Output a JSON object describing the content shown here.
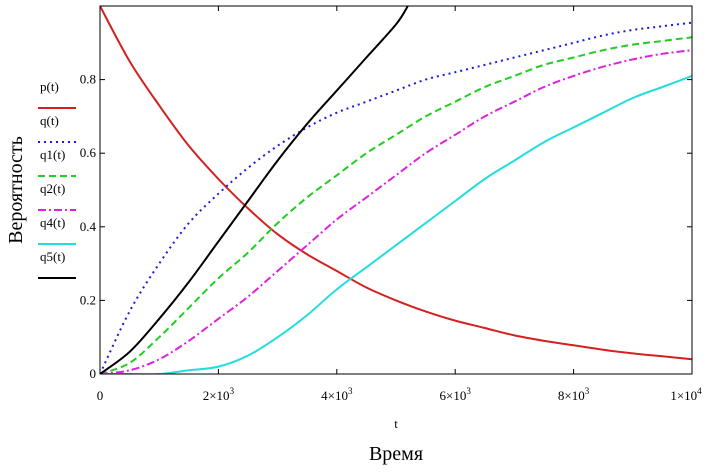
{
  "chart_data": {
    "type": "line",
    "xlabel_var": "t",
    "xlabel": "Время",
    "ylabel": "Вероятность",
    "xlim": [
      0,
      10000
    ],
    "ylim": [
      0,
      1
    ],
    "x_ticks": [
      {
        "value": 0,
        "base": "0",
        "exp": ""
      },
      {
        "value": 2000,
        "base": "2×10",
        "exp": "3"
      },
      {
        "value": 4000,
        "base": "4×10",
        "exp": "3"
      },
      {
        "value": 6000,
        "base": "6×10",
        "exp": "3"
      },
      {
        "value": 8000,
        "base": "8×10",
        "exp": "3"
      },
      {
        "value": 10000,
        "base": "1×10",
        "exp": "4"
      }
    ],
    "y_ticks": [
      {
        "value": 0,
        "label": "0"
      },
      {
        "value": 0.2,
        "label": "0.2"
      },
      {
        "value": 0.4,
        "label": "0.4"
      },
      {
        "value": 0.6,
        "label": "0.6"
      },
      {
        "value": 0.8,
        "label": "0.8"
      }
    ],
    "grid": false,
    "legend_position": "left",
    "x": [
      0,
      500,
      1000,
      1500,
      2000,
      2500,
      3000,
      3500,
      4000,
      4500,
      5000,
      5500,
      6000,
      6500,
      7000,
      7500,
      8000,
      8500,
      9000,
      9500,
      10000
    ],
    "series": [
      {
        "name": "p(t)",
        "color": "#d42020",
        "dash": "solid",
        "values": [
          1.0,
          0.85,
          0.73,
          0.62,
          0.53,
          0.45,
          0.38,
          0.325,
          0.28,
          0.235,
          0.2,
          0.17,
          0.145,
          0.125,
          0.105,
          0.09,
          0.078,
          0.066,
          0.056,
          0.048,
          0.04
        ]
      },
      {
        "name": "q(t)",
        "color": "#1a1adc",
        "dash": "dot",
        "values": [
          0.0,
          0.17,
          0.3,
          0.41,
          0.49,
          0.56,
          0.62,
          0.67,
          0.71,
          0.74,
          0.77,
          0.8,
          0.82,
          0.84,
          0.86,
          0.88,
          0.9,
          0.92,
          0.935,
          0.945,
          0.955
        ]
      },
      {
        "name": "q1(t)",
        "color": "#22cc22",
        "dash": "dash",
        "values": [
          0.0,
          0.03,
          0.1,
          0.18,
          0.26,
          0.33,
          0.41,
          0.48,
          0.54,
          0.6,
          0.65,
          0.7,
          0.74,
          0.78,
          0.81,
          0.84,
          0.86,
          0.88,
          0.895,
          0.905,
          0.915
        ]
      },
      {
        "name": "q2(t)",
        "color": "#dd22dd",
        "dash": "dashdot",
        "values": [
          0.0,
          0.01,
          0.04,
          0.09,
          0.15,
          0.21,
          0.28,
          0.35,
          0.42,
          0.48,
          0.54,
          0.6,
          0.65,
          0.7,
          0.74,
          0.78,
          0.81,
          0.835,
          0.855,
          0.87,
          0.88
        ]
      },
      {
        "name": "q4(t)",
        "color": "#22dddd",
        "dash": "solid",
        "values": [
          0.0,
          0.0,
          0.0,
          0.01,
          0.02,
          0.05,
          0.1,
          0.16,
          0.23,
          0.29,
          0.35,
          0.41,
          0.47,
          0.53,
          0.58,
          0.63,
          0.67,
          0.71,
          0.75,
          0.78,
          0.81
        ]
      },
      {
        "name": "q5(t)",
        "color": "#000000",
        "dash": "solid",
        "x": [
          0,
          500,
          1000,
          1500,
          2000,
          2500,
          3000,
          3500,
          4000,
          4500,
          5000,
          5200
        ],
        "values": [
          0.0,
          0.06,
          0.15,
          0.25,
          0.36,
          0.47,
          0.58,
          0.68,
          0.77,
          0.86,
          0.95,
          1.0
        ]
      }
    ]
  }
}
